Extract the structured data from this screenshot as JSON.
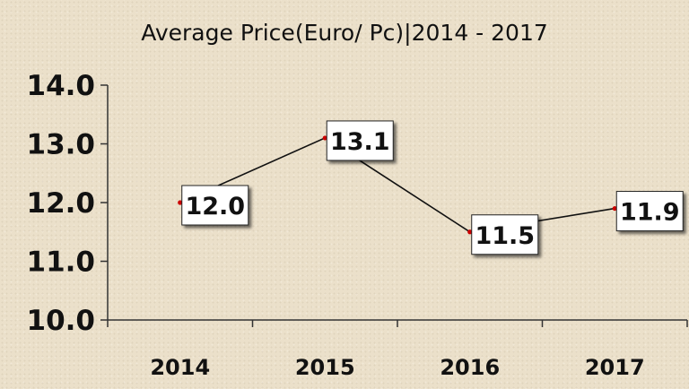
{
  "chart_data": {
    "type": "line",
    "title": "Average Price(Euro/ Pc)|2014 - 2017",
    "xlabel": "",
    "ylabel": "",
    "categories": [
      "2014",
      "2015",
      "2016",
      "2017"
    ],
    "series": [
      {
        "values": [
          12.0,
          13.1,
          11.5,
          11.9
        ]
      }
    ],
    "data_labels": [
      "12.0",
      "13.1",
      "11.5",
      "11.9"
    ],
    "y_tick_labels": [
      "14.0",
      "13.0",
      "12.0",
      "11.0",
      "10.0"
    ],
    "y_ticks": [
      14,
      13,
      12,
      11,
      10
    ],
    "ylim": [
      10,
      14
    ],
    "grid": false,
    "legend": "none",
    "colors": {
      "line": "#111111",
      "marker": "#cc0000",
      "axis": "#333333"
    }
  }
}
